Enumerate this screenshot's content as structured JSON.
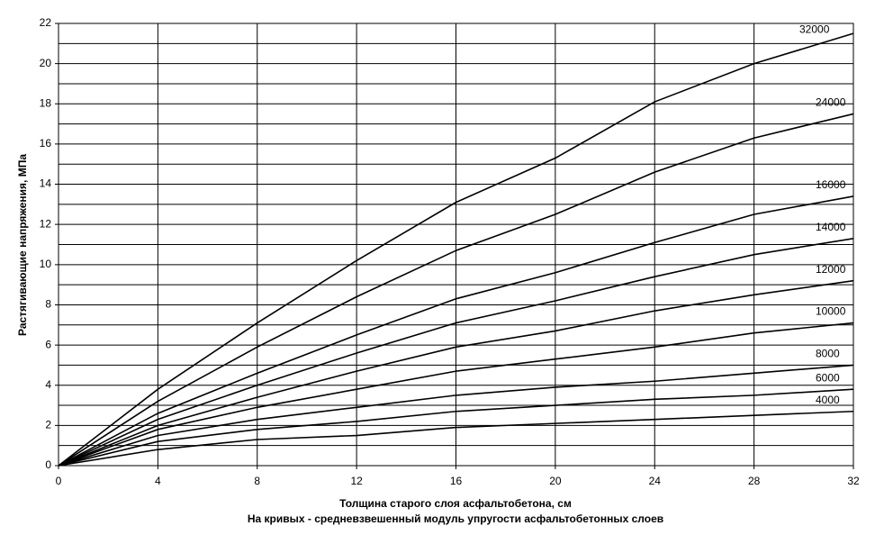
{
  "chart_data": {
    "type": "line",
    "x_label": "Толщина старого слоя асфальтобетона, см",
    "x_note": "На кривых - средневзвешенный модуль упругости асфальтобетонных слоев",
    "y_label": "Растягивающие напряжения, МПа",
    "x": [
      0,
      4,
      8,
      12,
      16,
      20,
      24,
      28,
      32
    ],
    "xlim": [
      0,
      32
    ],
    "xticks": [
      0,
      4,
      8,
      12,
      16,
      20,
      24,
      28,
      32
    ],
    "ylim": [
      0,
      22
    ],
    "yticks": [
      0,
      2,
      4,
      6,
      8,
      10,
      12,
      14,
      16,
      18,
      20,
      22
    ],
    "yminorticks": [
      1,
      3,
      5,
      7,
      9,
      11,
      13,
      15,
      17,
      19,
      21
    ],
    "grid": true,
    "series": [
      {
        "name": "32000",
        "color": "#000000",
        "values": [
          0,
          3.8,
          7.1,
          10.2,
          13.1,
          15.3,
          18.1,
          20.0,
          21.5
        ]
      },
      {
        "name": "24000",
        "color": "#000000",
        "values": [
          0,
          3.2,
          5.9,
          8.4,
          10.7,
          12.5,
          14.6,
          16.3,
          17.5
        ]
      },
      {
        "name": "16000",
        "color": "#000000",
        "values": [
          0,
          2.6,
          4.6,
          6.5,
          8.3,
          9.6,
          11.1,
          12.5,
          13.4
        ]
      },
      {
        "name": "14000",
        "color": "#000000",
        "values": [
          0,
          2.3,
          4.0,
          5.6,
          7.1,
          8.2,
          9.4,
          10.5,
          11.3
        ]
      },
      {
        "name": "12000",
        "color": "#000000",
        "values": [
          0,
          2.0,
          3.4,
          4.7,
          5.9,
          6.7,
          7.7,
          8.5,
          9.2
        ]
      },
      {
        "name": "10000",
        "color": "#000000",
        "values": [
          0,
          1.8,
          2.9,
          3.8,
          4.7,
          5.3,
          5.9,
          6.6,
          7.1
        ]
      },
      {
        "name": "8000",
        "color": "#000000",
        "values": [
          0,
          1.5,
          2.3,
          2.9,
          3.5,
          3.9,
          4.2,
          4.6,
          5.0
        ]
      },
      {
        "name": "6000",
        "color": "#000000",
        "values": [
          0,
          1.2,
          1.8,
          2.2,
          2.7,
          3.0,
          3.3,
          3.5,
          3.8
        ]
      },
      {
        "name": "4000",
        "color": "#000000",
        "values": [
          0,
          0.8,
          1.3,
          1.5,
          1.9,
          2.1,
          2.3,
          2.5,
          2.7
        ]
      }
    ]
  }
}
